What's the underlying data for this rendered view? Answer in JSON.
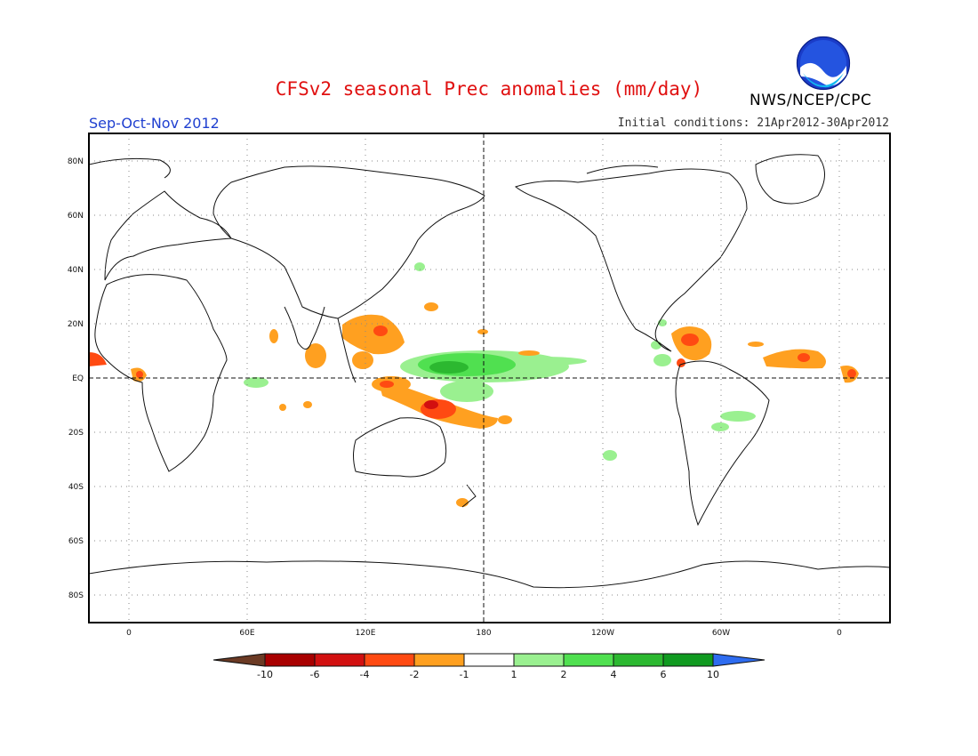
{
  "header": {
    "title": "CFSv2 seasonal Prec anomalies (mm/day)",
    "org": "NWS/NCEP/CPC",
    "logo_text": "NOAA",
    "season": "Sep-Oct-Nov 2012",
    "initial_conditions": "Initial conditions: 21Apr2012-30Apr2012"
  },
  "map": {
    "lat_labels": [
      "80N",
      "60N",
      "40N",
      "20N",
      "EQ",
      "20S",
      "40S",
      "60S",
      "80S"
    ],
    "lon_labels": [
      "0",
      "60E",
      "120E",
      "180",
      "120W",
      "60W",
      "0"
    ],
    "anomaly_regions": [
      {
        "name": "west-pacific-wet",
        "class": "positive",
        "lon": 160,
        "lat": 5,
        "value": 4
      },
      {
        "name": "maritime-continent-dry",
        "class": "negative",
        "lon": 140,
        "lat": -5,
        "value": -4
      },
      {
        "name": "philippines-dry",
        "class": "negative",
        "lon": 125,
        "lat": 15,
        "value": -2
      },
      {
        "name": "caribbean-dry",
        "class": "negative",
        "lon": -75,
        "lat": 15,
        "value": -4
      },
      {
        "name": "tropical-atlantic-dry",
        "class": "negative",
        "lon": -20,
        "lat": 7,
        "value": -4
      },
      {
        "name": "gulf-of-guinea-dry",
        "class": "negative",
        "lon": 5,
        "lat": 0,
        "value": -4
      }
    ]
  },
  "colorbar": {
    "labels": [
      "-10",
      "-6",
      "-4",
      "-2",
      "-1",
      "1",
      "2",
      "4",
      "6",
      "10"
    ],
    "colors": [
      "#6b3a24",
      "#a80000",
      "#d21010",
      "#ff4a12",
      "#ffa020",
      "#ffffff",
      "#9af090",
      "#50e050",
      "#2cb830",
      "#109a20",
      "#2e6cf0"
    ]
  }
}
